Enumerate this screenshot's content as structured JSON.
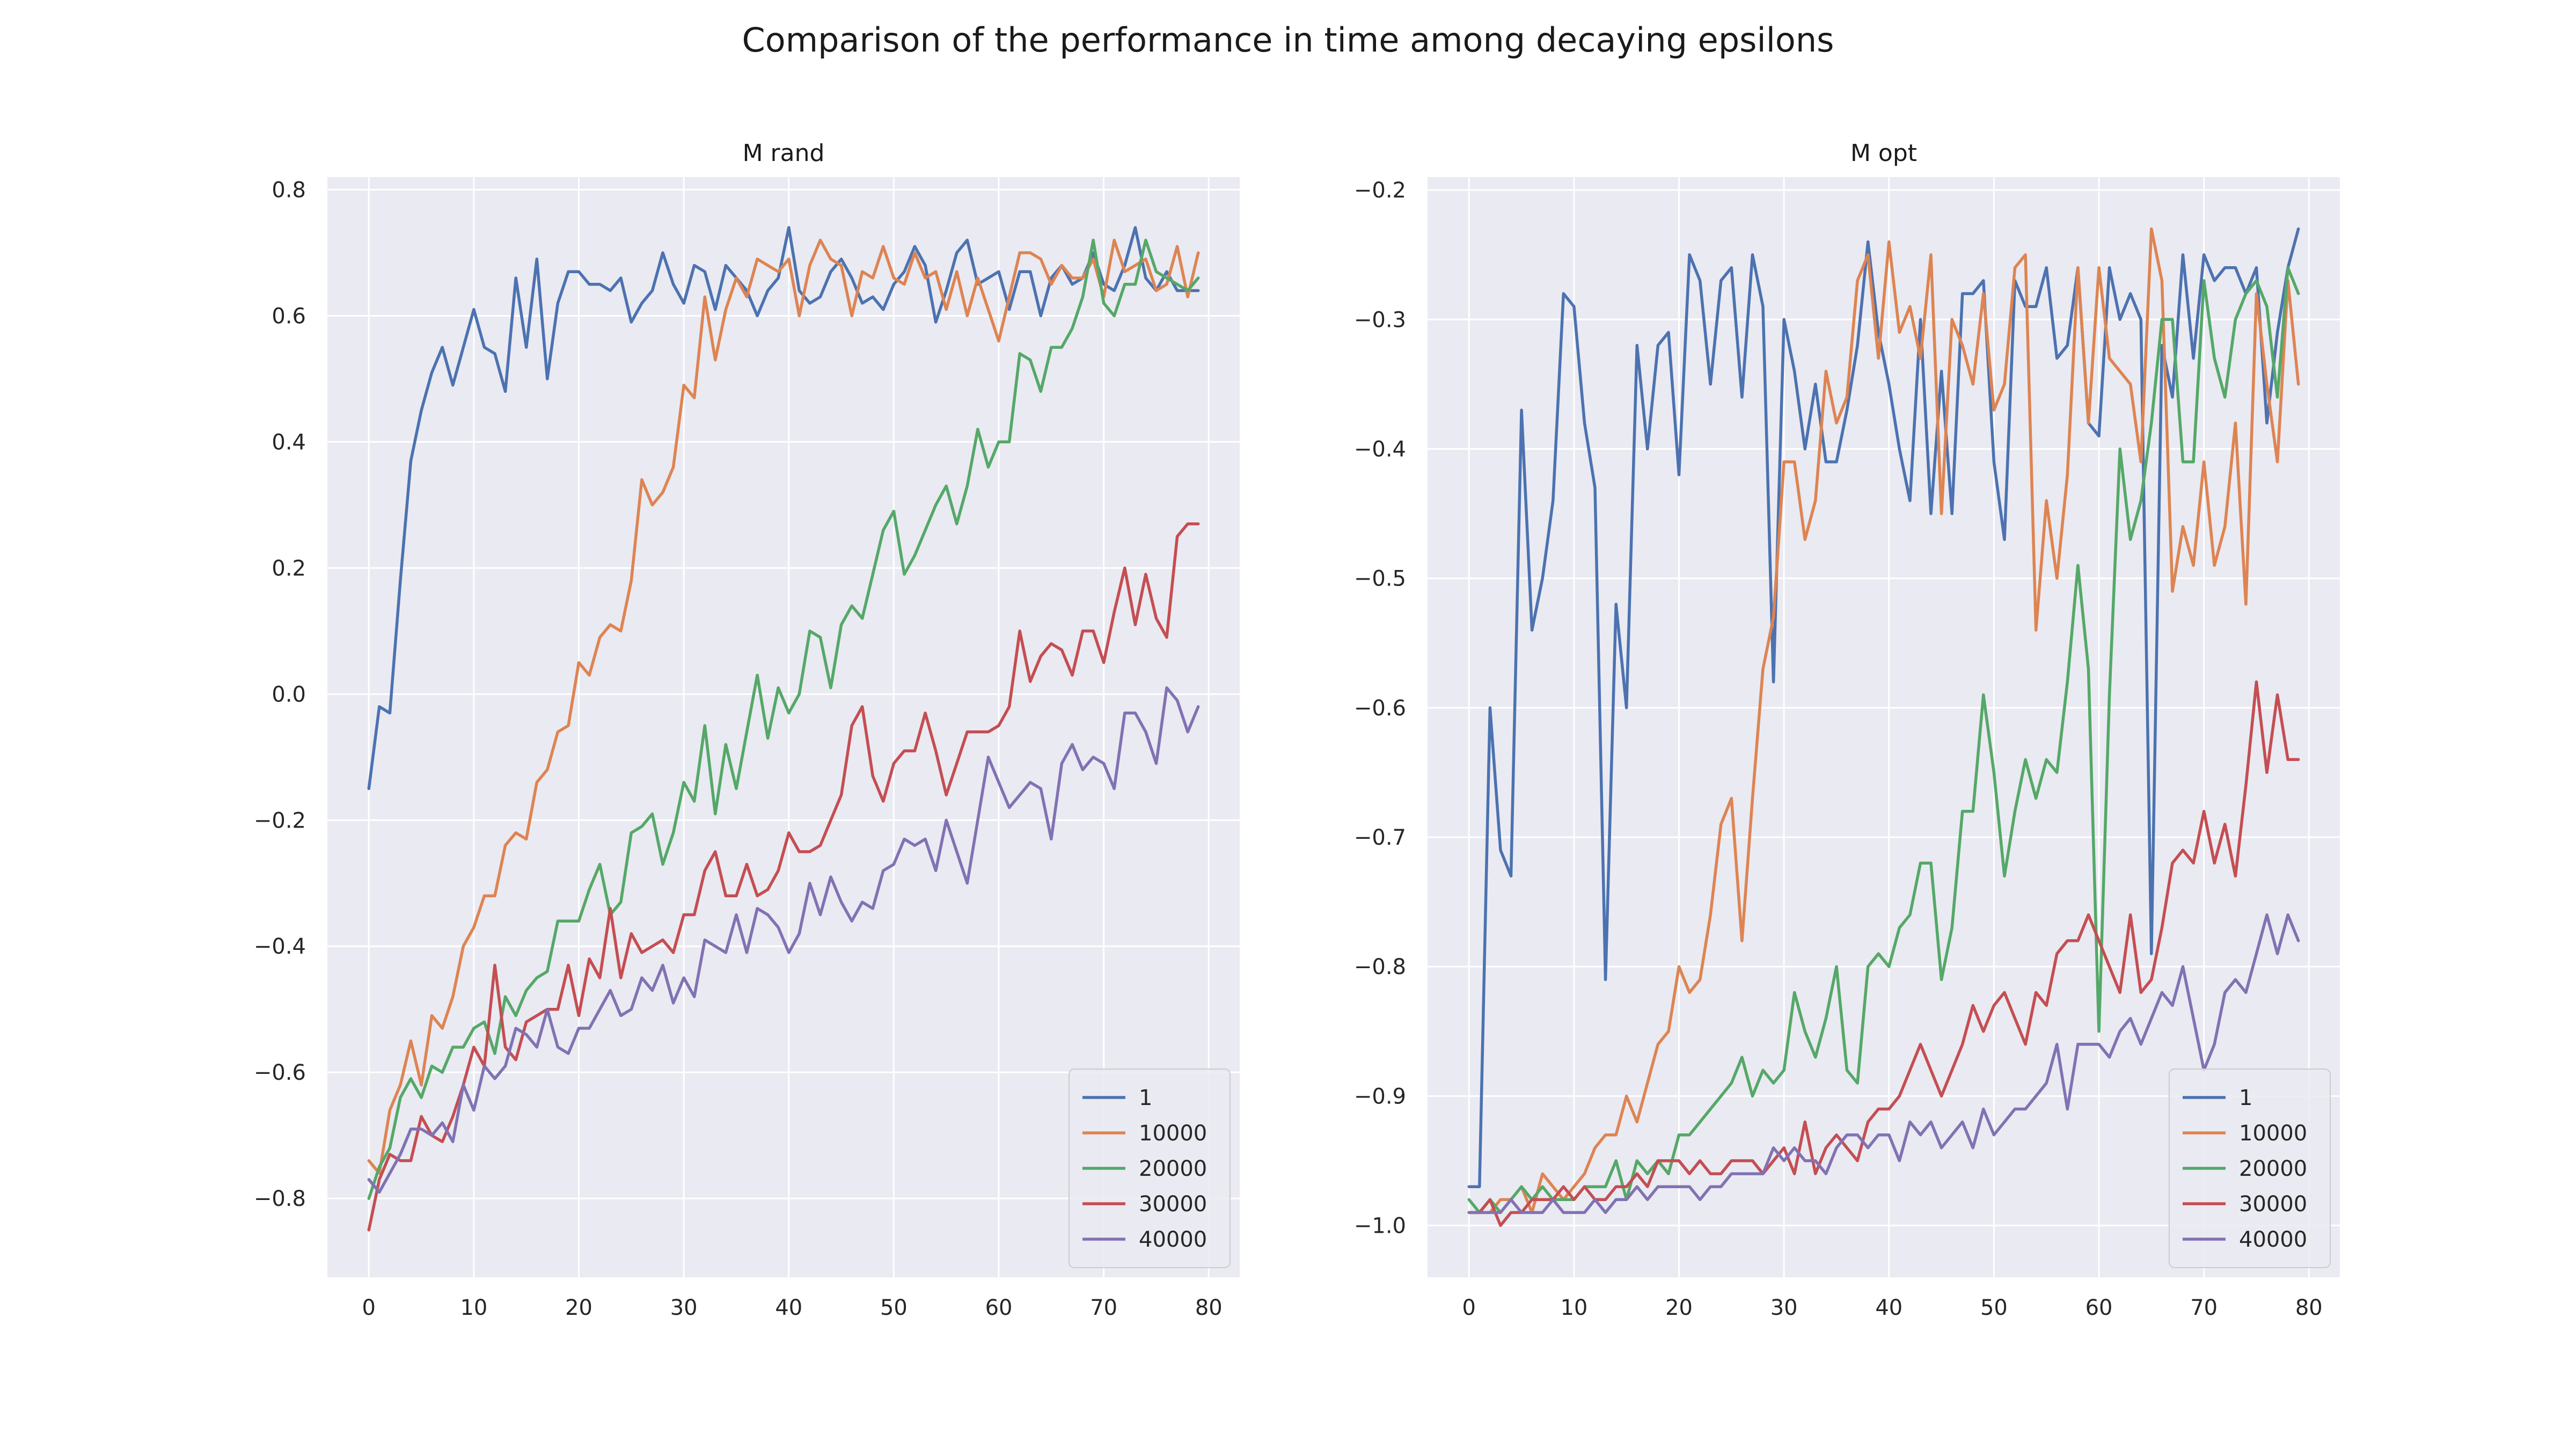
{
  "figure": {
    "title": "Comparison of the performance in time among decaying epsilons"
  },
  "colors": {
    "background": "#eaeaf2",
    "grid": "#ffffff",
    "series": [
      "#4c72b0",
      "#dd8452",
      "#55a868",
      "#c44e52",
      "#8172b3"
    ]
  },
  "chart_data": [
    {
      "type": "line",
      "title": "M rand",
      "xlabel": "",
      "ylabel": "",
      "xlim": [
        -3.95,
        82.95
      ],
      "ylim": [
        -0.925,
        0.82
      ],
      "xticks": [
        0,
        10,
        20,
        30,
        40,
        50,
        60,
        70,
        80
      ],
      "xtick_labels": [
        "0",
        "10",
        "20",
        "30",
        "40",
        "50",
        "60",
        "70",
        "80"
      ],
      "yticks": [
        -0.8,
        -0.6,
        -0.4,
        -0.2,
        0.0,
        0.2,
        0.4,
        0.6,
        0.8
      ],
      "ytick_labels": [
        "−0.8",
        "−0.6",
        "−0.4",
        "−0.2",
        "0.0",
        "0.2",
        "0.4",
        "0.6",
        "0.8"
      ],
      "grid": true,
      "legend_position": "lower-right",
      "series": [
        {
          "name": "1",
          "values": [
            -0.15,
            -0.02,
            -0.03,
            0.18,
            0.37,
            0.45,
            0.51,
            0.55,
            0.49,
            0.55,
            0.61,
            0.55,
            0.54,
            0.48,
            0.66,
            0.55,
            0.69,
            0.5,
            0.62,
            0.67,
            0.67,
            0.65,
            0.65,
            0.64,
            0.66,
            0.59,
            0.62,
            0.64,
            0.7,
            0.65,
            0.62,
            0.68,
            0.67,
            0.61,
            0.68,
            0.66,
            0.64,
            0.6,
            0.64,
            0.66,
            0.74,
            0.64,
            0.62,
            0.63,
            0.67,
            0.69,
            0.66,
            0.62,
            0.63,
            0.61,
            0.65,
            0.67,
            0.71,
            0.68,
            0.59,
            0.64,
            0.7,
            0.72,
            0.65,
            0.66,
            0.67,
            0.61,
            0.67,
            0.67,
            0.6,
            0.66,
            0.68,
            0.65,
            0.66,
            0.7,
            0.65,
            0.64,
            0.68,
            0.74,
            0.66,
            0.64,
            0.67,
            0.64,
            0.64,
            0.64
          ]
        },
        {
          "name": "10000",
          "values": [
            -0.74,
            -0.76,
            -0.66,
            -0.62,
            -0.55,
            -0.62,
            -0.51,
            -0.53,
            -0.48,
            -0.4,
            -0.37,
            -0.32,
            -0.32,
            -0.24,
            -0.22,
            -0.23,
            -0.14,
            -0.12,
            -0.06,
            -0.05,
            0.05,
            0.03,
            0.09,
            0.11,
            0.1,
            0.18,
            0.34,
            0.3,
            0.32,
            0.36,
            0.49,
            0.47,
            0.63,
            0.53,
            0.61,
            0.66,
            0.63,
            0.69,
            0.68,
            0.67,
            0.69,
            0.6,
            0.68,
            0.72,
            0.69,
            0.68,
            0.6,
            0.67,
            0.66,
            0.71,
            0.66,
            0.65,
            0.7,
            0.66,
            0.67,
            0.61,
            0.67,
            0.6,
            0.66,
            0.61,
            0.56,
            0.63,
            0.7,
            0.7,
            0.69,
            0.65,
            0.68,
            0.66,
            0.66,
            0.69,
            0.63,
            0.72,
            0.67,
            0.68,
            0.69,
            0.64,
            0.65,
            0.71,
            0.63,
            0.7
          ]
        },
        {
          "name": "20000",
          "values": [
            -0.8,
            -0.75,
            -0.72,
            -0.64,
            -0.61,
            -0.64,
            -0.59,
            -0.6,
            -0.56,
            -0.56,
            -0.53,
            -0.52,
            -0.57,
            -0.48,
            -0.51,
            -0.47,
            -0.45,
            -0.44,
            -0.36,
            -0.36,
            -0.36,
            -0.31,
            -0.27,
            -0.35,
            -0.33,
            -0.22,
            -0.21,
            -0.19,
            -0.27,
            -0.22,
            -0.14,
            -0.17,
            -0.05,
            -0.19,
            -0.08,
            -0.15,
            -0.06,
            0.03,
            -0.07,
            0.01,
            -0.03,
            0.0,
            0.1,
            0.09,
            0.01,
            0.11,
            0.14,
            0.12,
            0.19,
            0.26,
            0.29,
            0.19,
            0.22,
            0.26,
            0.3,
            0.33,
            0.27,
            0.33,
            0.42,
            0.36,
            0.4,
            0.4,
            0.54,
            0.53,
            0.48,
            0.55,
            0.55,
            0.58,
            0.63,
            0.72,
            0.62,
            0.6,
            0.65,
            0.65,
            0.72,
            0.67,
            0.66,
            0.65,
            0.64,
            0.66
          ]
        },
        {
          "name": "30000",
          "values": [
            -0.85,
            -0.77,
            -0.73,
            -0.74,
            -0.74,
            -0.67,
            -0.7,
            -0.71,
            -0.67,
            -0.62,
            -0.56,
            -0.59,
            -0.43,
            -0.56,
            -0.58,
            -0.52,
            -0.51,
            -0.5,
            -0.5,
            -0.43,
            -0.51,
            -0.42,
            -0.45,
            -0.34,
            -0.45,
            -0.38,
            -0.41,
            -0.4,
            -0.39,
            -0.41,
            -0.35,
            -0.35,
            -0.28,
            -0.25,
            -0.32,
            -0.32,
            -0.27,
            -0.32,
            -0.31,
            -0.28,
            -0.22,
            -0.25,
            -0.25,
            -0.24,
            -0.2,
            -0.16,
            -0.05,
            -0.02,
            -0.13,
            -0.17,
            -0.11,
            -0.09,
            -0.09,
            -0.03,
            -0.09,
            -0.16,
            -0.11,
            -0.06,
            -0.06,
            -0.06,
            -0.05,
            -0.02,
            0.1,
            0.02,
            0.06,
            0.08,
            0.07,
            0.03,
            0.1,
            0.1,
            0.05,
            0.13,
            0.2,
            0.11,
            0.19,
            0.12,
            0.09,
            0.25,
            0.27,
            0.27
          ]
        },
        {
          "name": "40000",
          "values": [
            -0.77,
            -0.79,
            -0.76,
            -0.73,
            -0.69,
            -0.69,
            -0.7,
            -0.68,
            -0.71,
            -0.62,
            -0.66,
            -0.59,
            -0.61,
            -0.59,
            -0.53,
            -0.54,
            -0.56,
            -0.5,
            -0.56,
            -0.57,
            -0.53,
            -0.53,
            -0.5,
            -0.47,
            -0.51,
            -0.5,
            -0.45,
            -0.47,
            -0.43,
            -0.49,
            -0.45,
            -0.48,
            -0.39,
            -0.4,
            -0.41,
            -0.35,
            -0.41,
            -0.34,
            -0.35,
            -0.37,
            -0.41,
            -0.38,
            -0.3,
            -0.35,
            -0.29,
            -0.33,
            -0.36,
            -0.33,
            -0.34,
            -0.28,
            -0.27,
            -0.23,
            -0.24,
            -0.23,
            -0.28,
            -0.2,
            -0.25,
            -0.3,
            -0.2,
            -0.1,
            -0.14,
            -0.18,
            -0.16,
            -0.14,
            -0.15,
            -0.23,
            -0.11,
            -0.08,
            -0.12,
            -0.1,
            -0.11,
            -0.15,
            -0.03,
            -0.03,
            -0.06,
            -0.11,
            0.01,
            -0.01,
            -0.06,
            -0.02
          ]
        }
      ]
    },
    {
      "type": "line",
      "title": "M opt",
      "xlabel": "",
      "ylabel": "",
      "xlim": [
        -3.95,
        82.95
      ],
      "ylim": [
        -1.04,
        -0.19
      ],
      "xticks": [
        0,
        10,
        20,
        30,
        40,
        50,
        60,
        70,
        80
      ],
      "xtick_labels": [
        "0",
        "10",
        "20",
        "30",
        "40",
        "50",
        "60",
        "70",
        "80"
      ],
      "yticks": [
        -1.0,
        -0.9,
        -0.8,
        -0.7,
        -0.6,
        -0.5,
        -0.4,
        -0.3,
        -0.2
      ],
      "ytick_labels": [
        "−1.0",
        "−0.9",
        "−0.8",
        "−0.7",
        "−0.6",
        "−0.5",
        "−0.4",
        "−0.3",
        "−0.2"
      ],
      "grid": true,
      "legend_position": "lower-right",
      "series": [
        {
          "name": "1",
          "values": [
            -0.97,
            -0.97,
            -0.6,
            -0.71,
            -0.73,
            -0.37,
            -0.54,
            -0.5,
            -0.44,
            -0.28,
            -0.29,
            -0.38,
            -0.43,
            -0.81,
            -0.52,
            -0.6,
            -0.32,
            -0.4,
            -0.32,
            -0.31,
            -0.42,
            -0.25,
            -0.27,
            -0.35,
            -0.27,
            -0.26,
            -0.36,
            -0.25,
            -0.29,
            -0.58,
            -0.3,
            -0.34,
            -0.4,
            -0.35,
            -0.41,
            -0.41,
            -0.37,
            -0.32,
            -0.24,
            -0.31,
            -0.35,
            -0.4,
            -0.44,
            -0.3,
            -0.45,
            -0.34,
            -0.45,
            -0.28,
            -0.28,
            -0.27,
            -0.41,
            -0.47,
            -0.27,
            -0.29,
            -0.29,
            -0.26,
            -0.33,
            -0.32,
            -0.26,
            -0.38,
            -0.39,
            -0.26,
            -0.3,
            -0.28,
            -0.3,
            -0.79,
            -0.32,
            -0.36,
            -0.25,
            -0.33,
            -0.25,
            -0.27,
            -0.26,
            -0.26,
            -0.28,
            -0.26,
            -0.38,
            -0.31,
            -0.26,
            -0.23
          ]
        },
        {
          "name": "10000",
          "values": [
            -0.99,
            -0.99,
            -0.99,
            -0.98,
            -0.98,
            -0.97,
            -0.99,
            -0.96,
            -0.97,
            -0.98,
            -0.97,
            -0.96,
            -0.94,
            -0.93,
            -0.93,
            -0.9,
            -0.92,
            -0.89,
            -0.86,
            -0.85,
            -0.8,
            -0.82,
            -0.81,
            -0.76,
            -0.69,
            -0.67,
            -0.78,
            -0.67,
            -0.57,
            -0.53,
            -0.41,
            -0.41,
            -0.47,
            -0.44,
            -0.34,
            -0.38,
            -0.36,
            -0.27,
            -0.25,
            -0.33,
            -0.24,
            -0.31,
            -0.29,
            -0.33,
            -0.25,
            -0.45,
            -0.3,
            -0.32,
            -0.35,
            -0.28,
            -0.37,
            -0.35,
            -0.26,
            -0.25,
            -0.54,
            -0.44,
            -0.5,
            -0.42,
            -0.26,
            -0.38,
            -0.26,
            -0.33,
            -0.34,
            -0.35,
            -0.41,
            -0.23,
            -0.27,
            -0.51,
            -0.46,
            -0.49,
            -0.41,
            -0.49,
            -0.46,
            -0.38,
            -0.52,
            -0.28,
            -0.35,
            -0.41,
            -0.27,
            -0.35
          ]
        },
        {
          "name": "20000",
          "values": [
            -0.98,
            -0.99,
            -0.98,
            -0.99,
            -0.98,
            -0.97,
            -0.98,
            -0.97,
            -0.98,
            -0.98,
            -0.98,
            -0.97,
            -0.97,
            -0.97,
            -0.95,
            -0.98,
            -0.95,
            -0.96,
            -0.95,
            -0.96,
            -0.93,
            -0.93,
            -0.92,
            -0.91,
            -0.9,
            -0.89,
            -0.87,
            -0.9,
            -0.88,
            -0.89,
            -0.88,
            -0.82,
            -0.85,
            -0.87,
            -0.84,
            -0.8,
            -0.88,
            -0.89,
            -0.8,
            -0.79,
            -0.8,
            -0.77,
            -0.76,
            -0.72,
            -0.72,
            -0.81,
            -0.77,
            -0.68,
            -0.68,
            -0.59,
            -0.65,
            -0.73,
            -0.68,
            -0.64,
            -0.67,
            -0.64,
            -0.65,
            -0.58,
            -0.49,
            -0.57,
            -0.85,
            -0.59,
            -0.4,
            -0.47,
            -0.44,
            -0.38,
            -0.3,
            -0.3,
            -0.41,
            -0.41,
            -0.27,
            -0.33,
            -0.36,
            -0.3,
            -0.28,
            -0.27,
            -0.29,
            -0.36,
            -0.26,
            -0.28
          ]
        },
        {
          "name": "30000",
          "values": [
            -0.99,
            -0.99,
            -0.98,
            -1.0,
            -0.99,
            -0.99,
            -0.98,
            -0.98,
            -0.98,
            -0.97,
            -0.98,
            -0.97,
            -0.98,
            -0.98,
            -0.97,
            -0.97,
            -0.96,
            -0.97,
            -0.95,
            -0.95,
            -0.95,
            -0.96,
            -0.95,
            -0.96,
            -0.96,
            -0.95,
            -0.95,
            -0.95,
            -0.96,
            -0.95,
            -0.94,
            -0.96,
            -0.92,
            -0.96,
            -0.94,
            -0.93,
            -0.94,
            -0.95,
            -0.92,
            -0.91,
            -0.91,
            -0.9,
            -0.88,
            -0.86,
            -0.88,
            -0.9,
            -0.88,
            -0.86,
            -0.83,
            -0.85,
            -0.83,
            -0.82,
            -0.84,
            -0.86,
            -0.82,
            -0.83,
            -0.79,
            -0.78,
            -0.78,
            -0.76,
            -0.78,
            -0.8,
            -0.82,
            -0.76,
            -0.82,
            -0.81,
            -0.77,
            -0.72,
            -0.71,
            -0.72,
            -0.68,
            -0.72,
            -0.69,
            -0.73,
            -0.66,
            -0.58,
            -0.65,
            -0.59,
            -0.64,
            -0.64
          ]
        },
        {
          "name": "40000",
          "values": [
            -0.99,
            -0.99,
            -0.99,
            -0.99,
            -0.98,
            -0.99,
            -0.99,
            -0.99,
            -0.98,
            -0.99,
            -0.99,
            -0.99,
            -0.98,
            -0.99,
            -0.98,
            -0.98,
            -0.97,
            -0.98,
            -0.97,
            -0.97,
            -0.97,
            -0.97,
            -0.98,
            -0.97,
            -0.97,
            -0.96,
            -0.96,
            -0.96,
            -0.96,
            -0.94,
            -0.95,
            -0.94,
            -0.95,
            -0.95,
            -0.96,
            -0.94,
            -0.93,
            -0.93,
            -0.94,
            -0.93,
            -0.93,
            -0.95,
            -0.92,
            -0.93,
            -0.92,
            -0.94,
            -0.93,
            -0.92,
            -0.94,
            -0.91,
            -0.93,
            -0.92,
            -0.91,
            -0.91,
            -0.9,
            -0.89,
            -0.86,
            -0.91,
            -0.86,
            -0.86,
            -0.86,
            -0.87,
            -0.85,
            -0.84,
            -0.86,
            -0.84,
            -0.82,
            -0.83,
            -0.8,
            -0.84,
            -0.88,
            -0.86,
            -0.82,
            -0.81,
            -0.82,
            -0.79,
            -0.76,
            -0.79,
            -0.76,
            -0.78
          ]
        }
      ]
    }
  ]
}
